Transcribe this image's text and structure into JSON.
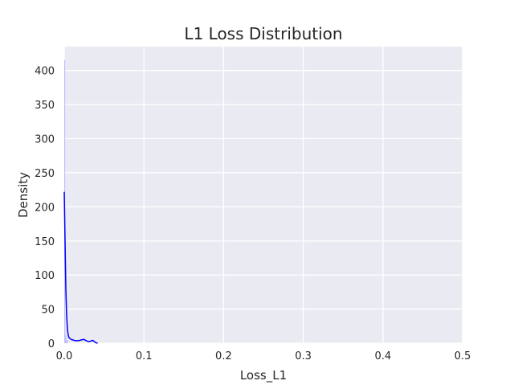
{
  "chart_data": {
    "type": "area",
    "title": "L1 Loss Distribution",
    "xlabel": "Loss_L1",
    "ylabel": "Density",
    "xlim": [
      0.0,
      0.5
    ],
    "ylim": [
      0,
      435
    ],
    "x_ticks": [
      0.0,
      0.1,
      0.2,
      0.3,
      0.4,
      0.5
    ],
    "x_tick_labels": [
      "0.0",
      "0.1",
      "0.2",
      "0.3",
      "0.4",
      "0.5"
    ],
    "y_ticks": [
      0,
      50,
      100,
      150,
      200,
      250,
      300,
      350,
      400
    ],
    "y_tick_labels": [
      "0",
      "50",
      "100",
      "150",
      "200",
      "250",
      "300",
      "350",
      "400"
    ],
    "grid": true,
    "background_color": "#eaeaf2",
    "grid_color": "#ffffff",
    "series": [
      {
        "kind": "histogram",
        "color": "#b4b4ff",
        "bars": [
          {
            "x0": 0.0,
            "x1": 0.0012,
            "density": 415
          },
          {
            "x0": 0.0012,
            "x1": 0.0024,
            "density": 12
          },
          {
            "x0": 0.0024,
            "x1": 0.0036,
            "density": 5
          },
          {
            "x0": 0.0036,
            "x1": 0.0048,
            "density": 3
          }
        ]
      },
      {
        "kind": "kde",
        "color": "#0000ff",
        "x": [
          0.0,
          0.001,
          0.002,
          0.003,
          0.004,
          0.005,
          0.006,
          0.008,
          0.01,
          0.013,
          0.016,
          0.019,
          0.022,
          0.025,
          0.027,
          0.03,
          0.032,
          0.034,
          0.036,
          0.038,
          0.04,
          0.042
        ],
        "y": [
          222,
          150,
          80,
          40,
          20,
          12,
          8,
          6,
          5,
          4,
          3.5,
          4,
          5,
          5.5,
          4,
          2.5,
          2.5,
          3.5,
          4,
          2,
          0.5,
          0
        ]
      }
    ]
  }
}
